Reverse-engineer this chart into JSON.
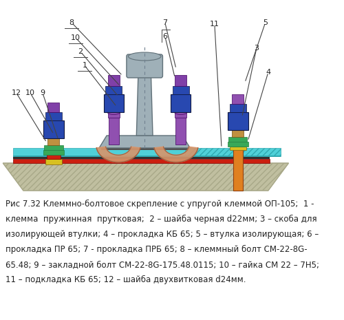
{
  "background_color": "#ffffff",
  "caption_lines": [
    "Рис 7.32 Клеммно-болтовое скрепление с упругой клеммой ОП-105;  1 -",
    "клемма  пружинная  прутковая;  2 – шайба черная d22мм; 3 – скоба для",
    "изолирующей втулки; 4 – прокладка КБ 65; 5 – втулка изолирующая; 6 –",
    "прокладка ПР 65; 7 - прокладка ПРБ 65; 8 – клеммный болт СМ-22-8G-",
    "65.48; 9 – закладной болт СМ-22-8G-175.48.0115; 10 – гайка СМ 22 – 7Н5;",
    "11 – подкладка КБ 65; 12 – шайба двухвитковая d24мм."
  ],
  "caption_fontsize": 8.5,
  "figsize": [
    5.0,
    4.65
  ],
  "dpi": 100,
  "colors": {
    "concrete": "#c0bfa0",
    "concrete_hatch": "#a8a888",
    "rail_body": "#9fb0b8",
    "rail_outline": "#607078",
    "rail_dark": "#404850",
    "pad_cyan": "#50d0d8",
    "pad_cyan_hatch": "#30a8b0",
    "pad_red": "#cc2010",
    "pad_dark": "#303030",
    "bolt_orange": "#e08020",
    "bolt_orange_dark": "#904010",
    "clamp_skin": "#d8956a",
    "clamp_skin_dark": "#a06040",
    "nut_blue": "#2848b0",
    "nut_blue_dark": "#101840",
    "nut_purple": "#8040a8",
    "nut_purple_dark": "#400060",
    "washer_green": "#38a858",
    "washer_green2": "#208040",
    "washer_yellow": "#d8c020",
    "washer_yellow_dark": "#806010",
    "bolt_brown": "#c09040",
    "bolt_brown_dark": "#705010",
    "spring_purple": "#9050b0",
    "spring_purple_dark": "#500070",
    "text_color": "#222222",
    "line_color": "#444444",
    "white": "#ffffff"
  }
}
